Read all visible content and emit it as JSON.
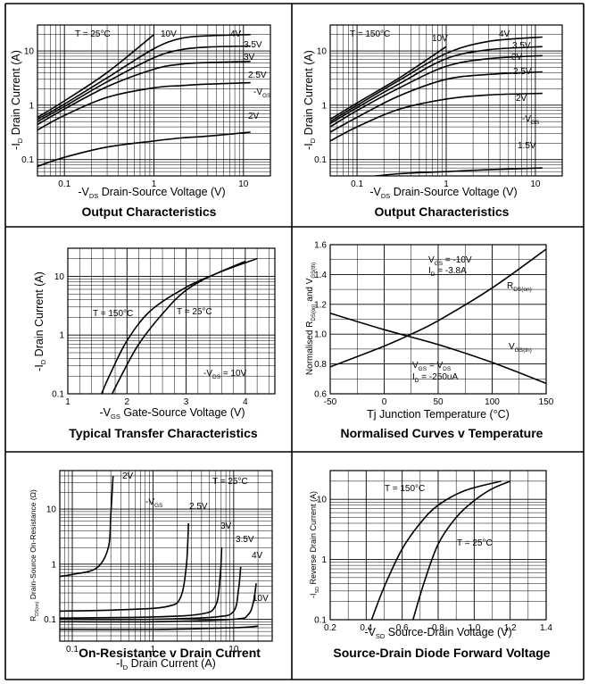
{
  "chart_data": [
    {
      "id": "p1",
      "type": "line",
      "title": "Output Characteristics",
      "xlabel": "-V_DS Drain-Source Voltage (V)",
      "ylabel": "-I_D Drain Current (A)",
      "xscale": "log",
      "yscale": "log",
      "xlim": [
        0.05,
        20
      ],
      "ylim": [
        0.05,
        30
      ],
      "xticks": [
        0.1,
        1,
        10
      ],
      "xticklabels": [
        "0.1",
        "1",
        "10"
      ],
      "yticks": [
        0.1,
        1,
        10
      ],
      "yticklabels": [
        "0.1",
        "1",
        "10"
      ],
      "grid": true,
      "condition": "T = 25°C",
      "annotation": "-V_GS",
      "series": [
        {
          "name": "10V",
          "x": [
            0.05,
            0.1,
            0.3,
            1.0
          ],
          "y": [
            0.6,
            1.2,
            4.0,
            20
          ]
        },
        {
          "name": "4V",
          "x": [
            0.05,
            0.1,
            0.3,
            1,
            2,
            4,
            12
          ],
          "y": [
            0.55,
            1.05,
            3.2,
            11,
            17,
            19,
            20
          ]
        },
        {
          "name": "3.5V",
          "x": [
            0.05,
            0.1,
            0.3,
            1,
            2,
            4,
            12
          ],
          "y": [
            0.5,
            0.95,
            2.7,
            7.5,
            10.5,
            11.8,
            12.3
          ]
        },
        {
          "name": "3V",
          "x": [
            0.05,
            0.1,
            0.3,
            1,
            2,
            4,
            12
          ],
          "y": [
            0.44,
            0.85,
            2.2,
            4.6,
            5.7,
            6.1,
            6.4
          ]
        },
        {
          "name": "2.5V",
          "x": [
            0.05,
            0.1,
            0.3,
            1,
            2,
            4,
            12
          ],
          "y": [
            0.35,
            0.65,
            1.4,
            2.1,
            2.3,
            2.45,
            2.6
          ]
        },
        {
          "name": "2V",
          "x": [
            0.05,
            0.1,
            0.3,
            1,
            2,
            4,
            12
          ],
          "y": [
            0.075,
            0.11,
            0.17,
            0.22,
            0.25,
            0.27,
            0.32
          ]
        }
      ]
    },
    {
      "id": "p2",
      "type": "line",
      "title": "Output Characteristics",
      "xlabel": "-V_DS Drain-Source Voltage (V)",
      "ylabel": "-I_D Drain Current (A)",
      "xscale": "log",
      "yscale": "log",
      "xlim": [
        0.05,
        20
      ],
      "ylim": [
        0.05,
        30
      ],
      "xticks": [
        0.1,
        1,
        10
      ],
      "xticklabels": [
        "0.1",
        "1",
        "10"
      ],
      "yticks": [
        0.1,
        1,
        10
      ],
      "yticklabels": [
        "0.1",
        "1",
        "10"
      ],
      "grid": true,
      "condition": "T = 150°C",
      "annotation": "-V_GS",
      "series": [
        {
          "name": "10V",
          "x": [
            0.05,
            0.1,
            0.3,
            1.0
          ],
          "y": [
            0.55,
            1.1,
            3.2,
            12
          ]
        },
        {
          "name": "4V",
          "x": [
            0.05,
            0.1,
            0.3,
            1,
            3,
            12
          ],
          "y": [
            0.5,
            1.0,
            2.9,
            9,
            15,
            18
          ]
        },
        {
          "name": "3.5V",
          "x": [
            0.05,
            0.1,
            0.3,
            1,
            3,
            12
          ],
          "y": [
            0.46,
            0.9,
            2.5,
            7.2,
            10.5,
            12
          ]
        },
        {
          "name": "3V",
          "x": [
            0.05,
            0.1,
            0.3,
            1,
            3,
            12
          ],
          "y": [
            0.4,
            0.8,
            2.1,
            5.2,
            7.2,
            8.2
          ]
        },
        {
          "name": "2.5V",
          "x": [
            0.05,
            0.1,
            0.3,
            1,
            3,
            12
          ],
          "y": [
            0.32,
            0.6,
            1.5,
            3.0,
            3.7,
            4.1
          ]
        },
        {
          "name": "2V",
          "x": [
            0.05,
            0.1,
            0.3,
            1,
            3,
            12
          ],
          "y": [
            0.22,
            0.4,
            0.85,
            1.3,
            1.55,
            1.65
          ]
        },
        {
          "name": "1.5V",
          "x": [
            0.05,
            0.1,
            0.3,
            1,
            3,
            12
          ],
          "y": [
            0.035,
            0.045,
            0.055,
            0.06,
            0.065,
            0.07
          ]
        }
      ]
    },
    {
      "id": "p3",
      "type": "line",
      "title": "Typical Transfer Characteristics",
      "xlabel": "-V_GS Gate-Source Voltage (V)",
      "ylabel": "-I_D Drain Current (A)",
      "xscale": "linear",
      "yscale": "log",
      "xlim": [
        1,
        4.5
      ],
      "ylim": [
        0.1,
        30
      ],
      "xticks": [
        1,
        2,
        3,
        4
      ],
      "xticklabels": [
        "1",
        "2",
        "3",
        "4"
      ],
      "yticks": [
        0.1,
        1,
        10
      ],
      "yticklabels": [
        "0.1",
        "1",
        "10"
      ],
      "grid": true,
      "condition": "-V_DS = 10V",
      "series": [
        {
          "name": "T = 150°C",
          "x": [
            1.57,
            1.7,
            2.0,
            2.4,
            3.0,
            3.5,
            4.0
          ],
          "y": [
            0.1,
            0.2,
            0.8,
            2.6,
            6.5,
            11,
            18
          ]
        },
        {
          "name": "T = 25°C",
          "x": [
            1.75,
            1.9,
            2.2,
            2.6,
            3.0,
            3.5,
            4.2
          ],
          "y": [
            0.1,
            0.2,
            0.7,
            2.3,
            5.8,
            11,
            20
          ]
        }
      ]
    },
    {
      "id": "p4",
      "type": "line",
      "title": "Normalised Curves v Temperature",
      "xlabel": "Tj Junction Temperature (°C)",
      "ylabel": "Normalised R_DS(on) and V_GS(th)",
      "xscale": "linear",
      "yscale": "linear",
      "xlim": [
        -50,
        150
      ],
      "ylim": [
        0.6,
        1.6
      ],
      "xticks": [
        -50,
        0,
        50,
        100,
        150
      ],
      "xticklabels": [
        "-50",
        "0",
        "50",
        "100",
        "150"
      ],
      "yticks": [
        0.6,
        0.8,
        1.0,
        1.2,
        1.4,
        1.6
      ],
      "yticklabels": [
        "0.6",
        "0.8",
        "1.0",
        "1.2",
        "1.4",
        "1.6"
      ],
      "grid": true,
      "conditions": [
        "V_GS = -10V",
        "I_D = -3.8A",
        "V_GS = V_DS",
        "I_D = -250uA"
      ],
      "series": [
        {
          "name": "R_DS(on)",
          "x": [
            -50,
            0,
            25,
            50,
            100,
            150
          ],
          "y": [
            0.78,
            0.92,
            1.0,
            1.09,
            1.31,
            1.57
          ]
        },
        {
          "name": "V_GS(th)",
          "x": [
            -50,
            0,
            50,
            100,
            150
          ],
          "y": [
            1.14,
            1.03,
            0.93,
            0.81,
            0.67
          ]
        }
      ]
    },
    {
      "id": "p5",
      "type": "line",
      "title": "On-Resistance v Drain Current",
      "xlabel": "-I_D Drain Current (A)",
      "ylabel": "R_DS(on) Drain-Source On-Resistance (Ω)",
      "xscale": "log",
      "yscale": "log",
      "xlim": [
        0.07,
        30
      ],
      "ylim": [
        0.04,
        50
      ],
      "xticks": [
        0.1,
        1,
        10
      ],
      "xticklabels": [
        "0.1",
        "1",
        "10"
      ],
      "yticks": [
        0.1,
        1,
        10
      ],
      "yticklabels": [
        "0.1",
        "1",
        "10"
      ],
      "grid": true,
      "condition": "T = 25°C",
      "annotation": "-V_GS",
      "series": [
        {
          "name": "2V",
          "x": [
            0.07,
            0.1,
            0.2,
            0.28,
            0.3,
            0.32
          ],
          "y": [
            0.6,
            0.65,
            0.85,
            2.0,
            8,
            40
          ]
        },
        {
          "name": "2.5V",
          "x": [
            0.07,
            0.5,
            1.5,
            2.2,
            2.6,
            2.75
          ],
          "y": [
            0.14,
            0.15,
            0.17,
            0.25,
            1.0,
            5.5
          ]
        },
        {
          "name": "3V",
          "x": [
            0.07,
            1,
            4,
            6,
            6.8,
            7.1
          ],
          "y": [
            0.105,
            0.11,
            0.125,
            0.18,
            0.6,
            2.0
          ]
        },
        {
          "name": "3.5V",
          "x": [
            0.07,
            1,
            6,
            10,
            11.5,
            12.2
          ],
          "y": [
            0.1,
            0.1,
            0.11,
            0.14,
            0.35,
            0.9
          ]
        },
        {
          "name": "4V",
          "x": [
            0.07,
            1,
            10,
            15,
            17.5,
            19
          ],
          "y": [
            0.09,
            0.09,
            0.1,
            0.12,
            0.2,
            0.45
          ]
        },
        {
          "name": "10V",
          "x": [
            0.07,
            1,
            10,
            20
          ],
          "y": [
            0.065,
            0.065,
            0.07,
            0.075
          ]
        }
      ]
    },
    {
      "id": "p6",
      "type": "line",
      "title": "Source-Drain Diode Forward Voltage",
      "xlabel": "-V_SD Source-Drain Voltage (V)",
      "ylabel": "-I_SD Reverse Drain Current (A)",
      "xscale": "linear",
      "yscale": "log",
      "xlim": [
        0.2,
        1.4
      ],
      "ylim": [
        0.1,
        30
      ],
      "xticks": [
        0.2,
        0.4,
        0.6,
        0.8,
        1.0,
        1.2,
        1.4
      ],
      "xticklabels": [
        "0.2",
        "0.4",
        "0.6",
        "0.8",
        "1.0",
        "1.2",
        "1.4"
      ],
      "yticks": [
        0.1,
        1,
        10
      ],
      "yticklabels": [
        "0.1",
        "1",
        "10"
      ],
      "grid": true,
      "series": [
        {
          "name": "T = 150°C",
          "x": [
            0.43,
            0.5,
            0.6,
            0.7,
            0.8,
            0.95,
            1.15
          ],
          "y": [
            0.1,
            0.35,
            1.5,
            4.0,
            8.0,
            14,
            20
          ]
        },
        {
          "name": "T = 25°C",
          "x": [
            0.66,
            0.72,
            0.8,
            0.9,
            1.0,
            1.1,
            1.2
          ],
          "y": [
            0.1,
            0.4,
            1.8,
            5.0,
            9.5,
            15,
            20
          ]
        }
      ]
    }
  ]
}
